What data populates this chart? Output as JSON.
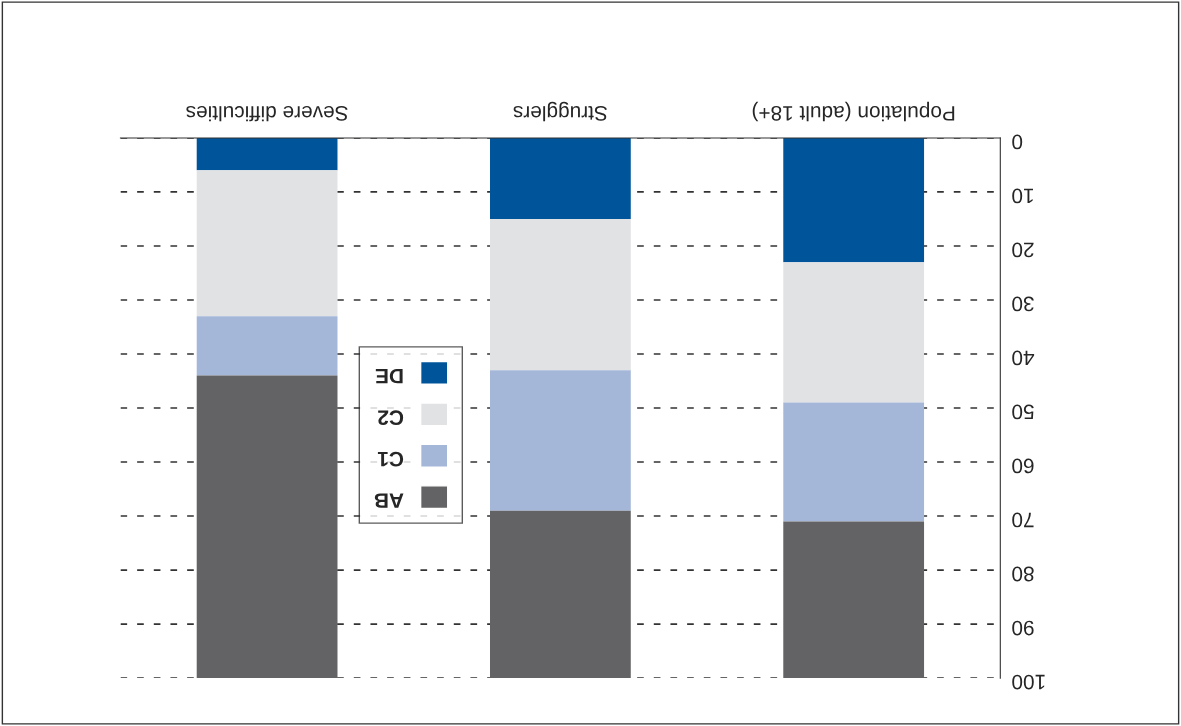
{
  "chart_data": {
    "type": "bar",
    "stacked": true,
    "categories": [
      "Severe difficulties",
      "Strugglers",
      "Population (adult 18+)"
    ],
    "series": [
      {
        "name": "DE",
        "color": "#00559a",
        "values": [
          6,
          15,
          23
        ]
      },
      {
        "name": "C2",
        "color": "#e1e2e4",
        "values": [
          27,
          28,
          26
        ]
      },
      {
        "name": "C1",
        "color": "#a4b7d8",
        "values": [
          11,
          26,
          22
        ]
      },
      {
        "name": "AB",
        "color": "#636365",
        "values": [
          56,
          31,
          29
        ]
      }
    ],
    "ylim": [
      100,
      0
    ],
    "yticks": [
      0,
      10,
      20,
      30,
      40,
      50,
      60,
      70,
      80,
      90,
      100
    ],
    "grid": "y",
    "legend": "left"
  }
}
